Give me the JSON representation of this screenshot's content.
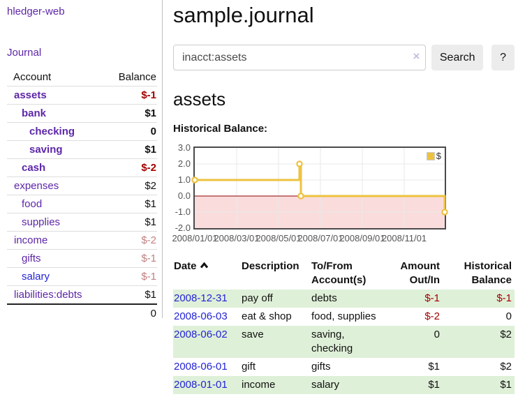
{
  "colors": {
    "link_purple": "#5d26a8",
    "link_blue": "#2323d8",
    "negative_strong": "#a40000",
    "negative_faded": "#c08080",
    "row_highlight_green": "#dff0d8",
    "chart_line_gold": "#edc240",
    "chart_negative_region_pink": "#fbdcdc",
    "chart_zero_line_red": "#8b0000"
  },
  "sidebar": {
    "app_title": "hledger-web",
    "journal_link": "Journal",
    "accounts": {
      "header_account": "Account",
      "header_balance": "Balance",
      "rows": [
        {
          "name": "assets",
          "balance": "$-1",
          "depth": 1,
          "emph": true,
          "balance_tone": "neg-strong",
          "link_tone": "purple"
        },
        {
          "name": "bank",
          "balance": "$1",
          "depth": 2,
          "emph": true,
          "balance_tone": "normal",
          "link_tone": "purple"
        },
        {
          "name": "checking",
          "balance": "0",
          "depth": 3,
          "emph": true,
          "balance_tone": "normal",
          "link_tone": "purple"
        },
        {
          "name": "saving",
          "balance": "$1",
          "depth": 3,
          "emph": true,
          "balance_tone": "normal",
          "link_tone": "purple"
        },
        {
          "name": "cash",
          "balance": "$-2",
          "depth": 2,
          "emph": true,
          "balance_tone": "neg-strong",
          "link_tone": "purple"
        },
        {
          "name": "expenses",
          "balance": "$2",
          "depth": 1,
          "emph": false,
          "balance_tone": "normal",
          "link_tone": "purple"
        },
        {
          "name": "food",
          "balance": "$1",
          "depth": 2,
          "emph": false,
          "balance_tone": "normal",
          "link_tone": "purple"
        },
        {
          "name": "supplies",
          "balance": "$1",
          "depth": 2,
          "emph": false,
          "balance_tone": "normal",
          "link_tone": "purple"
        },
        {
          "name": "income",
          "balance": "$-2",
          "depth": 1,
          "emph": false,
          "balance_tone": "neg-faded",
          "link_tone": "purple"
        },
        {
          "name": "gifts",
          "balance": "$-1",
          "depth": 2,
          "emph": false,
          "balance_tone": "neg-faded",
          "link_tone": "purple"
        },
        {
          "name": "salary",
          "balance": "$-1",
          "depth": 2,
          "emph": false,
          "balance_tone": "neg-faded",
          "link_tone": "blue"
        },
        {
          "name": "liabilities:debts",
          "balance": "$1",
          "depth": 1,
          "emph": false,
          "balance_tone": "normal",
          "link_tone": "purple"
        }
      ],
      "total": "0"
    }
  },
  "main": {
    "title": "sample.journal",
    "search": {
      "value": "inacct:assets",
      "clear_icon": "×",
      "search_button": "Search",
      "help_button": "?"
    },
    "account_heading": "assets",
    "chart_title": "Historical Balance:"
  },
  "chart_data": {
    "type": "line",
    "step": true,
    "title": "Historical Balance:",
    "series": [
      {
        "name": "$",
        "color": "#edc240",
        "points": [
          [
            "2008-01-01",
            1.0
          ],
          [
            "2008-06-01",
            2.0
          ],
          [
            "2008-06-03",
            0.0
          ],
          [
            "2008-12-31",
            -1.0
          ]
        ]
      }
    ],
    "ylim": [
      -2.0,
      3.0
    ],
    "ytick_labels": [
      "3.0",
      "2.0",
      "1.0",
      "0.0",
      "-1.0",
      "-2.0"
    ],
    "ytick_values": [
      3,
      2,
      1,
      0,
      -1,
      -2
    ],
    "xtick_labels": [
      "2008/01/01",
      "2008/03/01",
      "2008/05/01",
      "2008/07/01",
      "2008/09/01",
      "2008/11/01"
    ],
    "x_range": [
      "2008-01-01",
      "2008-12-31"
    ],
    "grid": true,
    "negative_region_shaded": true,
    "legend": {
      "label": "$",
      "position": "top-right"
    }
  },
  "register": {
    "headers": {
      "date": "Date",
      "description": "Description",
      "accounts": "To/From Account(s)",
      "amount": "Amount Out/In",
      "balance": "Historical Balance"
    },
    "sort": {
      "column": "Date",
      "direction": "ascending",
      "icon": "chevron-up-icon"
    },
    "rows": [
      {
        "date": "2008-12-31",
        "description": "pay off",
        "accounts": "debts",
        "amount": "$-1",
        "balance": "$-1",
        "amount_tone": "neg-strong",
        "balance_tone": "neg-strong",
        "highlight": true
      },
      {
        "date": "2008-06-03",
        "description": "eat & shop",
        "accounts": "food, supplies",
        "amount": "$-2",
        "balance": "0",
        "amount_tone": "neg-strong",
        "balance_tone": "normal",
        "highlight": false
      },
      {
        "date": "2008-06-02",
        "description": "save",
        "accounts": "saving, checking",
        "amount": "0",
        "balance": "$2",
        "amount_tone": "normal",
        "balance_tone": "normal",
        "highlight": true
      },
      {
        "date": "2008-06-01",
        "description": "gift",
        "accounts": "gifts",
        "amount": "$1",
        "balance": "$2",
        "amount_tone": "normal",
        "balance_tone": "normal",
        "highlight": false
      },
      {
        "date": "2008-01-01",
        "description": "income",
        "accounts": "salary",
        "amount": "$1",
        "balance": "$1",
        "amount_tone": "normal",
        "balance_tone": "normal",
        "highlight": true
      }
    ]
  }
}
